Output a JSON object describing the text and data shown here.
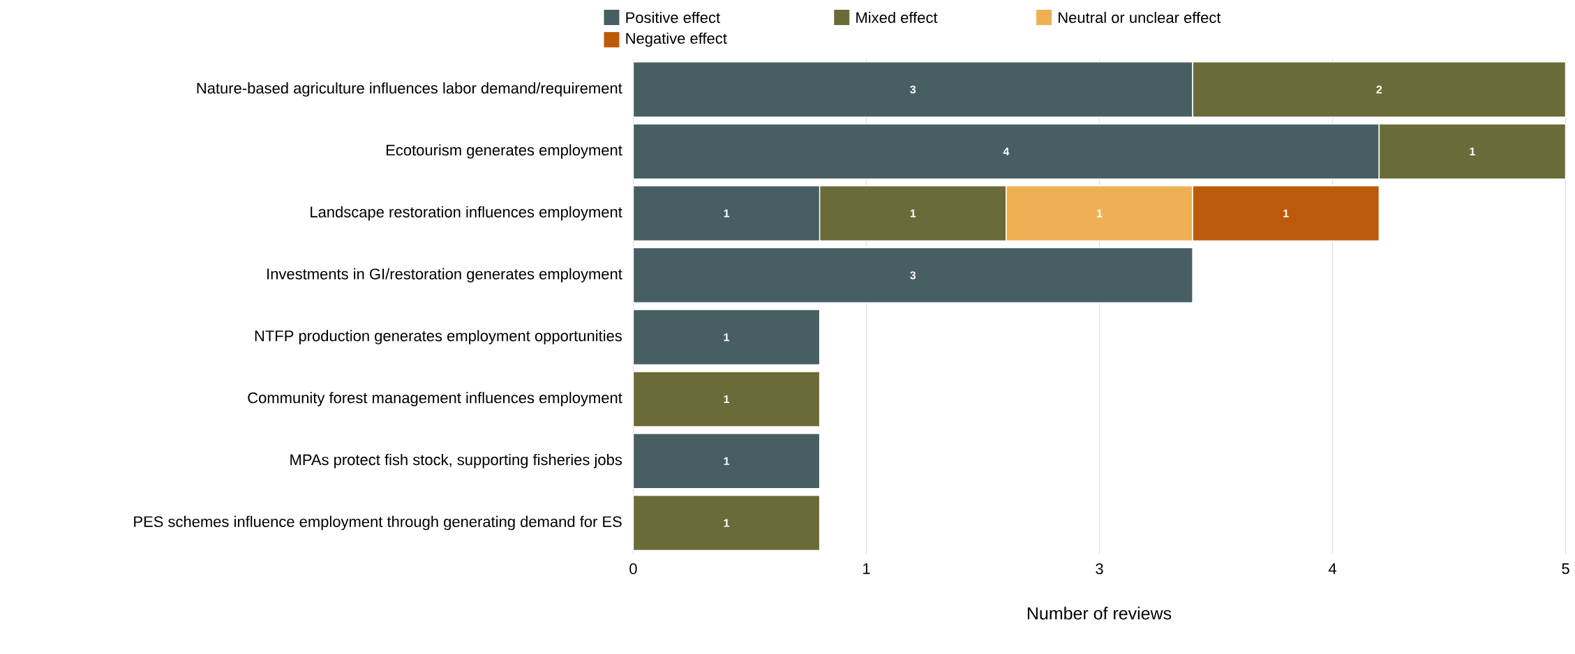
{
  "chart_data": {
    "type": "bar",
    "orientation": "horizontal",
    "stacked": true,
    "data_labels": true,
    "grid": "x",
    "legend": "top",
    "xlabel": "Number of reviews",
    "categories": [
      "Nature-based agriculture influences labor demand/requirement",
      "Ecotourism generates employment",
      "Landscape restoration influences employment",
      "Investments in GI/restoration generates employment",
      "NTFP production generates employment opportunities",
      "Community forest management influences employment",
      "MPAs protect fish stock, supporting fisheries jobs",
      "PES schemes influence employment through generating demand for ES"
    ],
    "series": [
      {
        "name": "Positive effect",
        "color": "#475f63",
        "values": [
          3,
          4,
          1,
          3,
          1,
          null,
          1,
          null
        ]
      },
      {
        "name": "Mixed effect",
        "color": "#6b6b3a",
        "values": [
          2,
          1,
          1,
          null,
          null,
          1,
          null,
          1
        ]
      },
      {
        "name": "Neutral or unclear effect",
        "color": "#eeb052",
        "values": [
          null,
          null,
          1,
          null,
          null,
          null,
          null,
          null
        ]
      },
      {
        "name": "Negative effect",
        "color": "#bd5a0a",
        "values": [
          null,
          null,
          1,
          null,
          null,
          null,
          null,
          null
        ]
      }
    ],
    "xlim": [
      0,
      5
    ],
    "xticks": [
      0,
      {
        "value": 1.25,
        "label": "1"
      },
      {
        "value": 2.5,
        "label": "3"
      },
      {
        "value": 3.75,
        "label": "4"
      },
      5
    ]
  }
}
